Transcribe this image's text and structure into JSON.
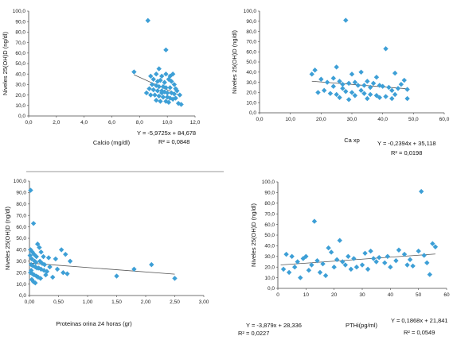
{
  "chart_data": [
    {
      "type": "scatter",
      "xlabel": "Calcio (mg/dl)",
      "ylabel": "Niveles 25(OH)D (ng/dl)",
      "xlim": [
        0,
        12
      ],
      "ylim": [
        0,
        100
      ],
      "xticks": [
        "0,0",
        "2,0",
        "4,0",
        "6,0",
        "8,0",
        "10,0",
        "12,0"
      ],
      "yticks": [
        "0,0",
        "10,0",
        "20,0",
        "30,0",
        "40,0",
        "50,0",
        "60,0",
        "70,0",
        "80,0",
        "90,0",
        "100,0"
      ],
      "color": "#3d9fd6",
      "trend": {
        "slope": -5.9725,
        "intercept": 84.678,
        "x_range": [
          7.6,
          11.0
        ]
      },
      "equation": "Y = -5,9725x + 84,678",
      "r2": "R² = 0,0848",
      "points": [
        [
          8.6,
          91
        ],
        [
          9.9,
          63
        ],
        [
          7.6,
          42
        ],
        [
          9.4,
          45
        ],
        [
          8.8,
          38
        ],
        [
          9.2,
          40
        ],
        [
          9.6,
          38
        ],
        [
          9.9,
          40
        ],
        [
          10.2,
          38
        ],
        [
          10.4,
          40
        ],
        [
          9.0,
          35
        ],
        [
          9.3,
          33
        ],
        [
          9.5,
          34
        ],
        [
          9.8,
          32
        ],
        [
          10.1,
          35
        ],
        [
          10.3,
          33
        ],
        [
          10.5,
          30
        ],
        [
          8.9,
          30
        ],
        [
          9.2,
          29
        ],
        [
          9.4,
          28
        ],
        [
          9.7,
          28
        ],
        [
          9.9,
          27
        ],
        [
          10.2,
          27
        ],
        [
          10.6,
          26
        ],
        [
          8.7,
          26
        ],
        [
          9.0,
          25
        ],
        [
          9.3,
          24
        ],
        [
          9.6,
          24
        ],
        [
          9.8,
          23
        ],
        [
          10.0,
          22
        ],
        [
          10.3,
          22
        ],
        [
          10.5,
          21
        ],
        [
          10.7,
          24
        ],
        [
          8.5,
          22
        ],
        [
          8.8,
          20
        ],
        [
          9.1,
          20
        ],
        [
          9.4,
          19
        ],
        [
          9.7,
          18
        ],
        [
          10.0,
          18
        ],
        [
          10.2,
          17
        ],
        [
          10.4,
          16
        ],
        [
          10.6,
          17
        ],
        [
          9.2,
          15
        ],
        [
          9.5,
          14
        ],
        [
          9.9,
          14
        ],
        [
          10.1,
          13
        ],
        [
          10.8,
          12
        ],
        [
          11.0,
          11
        ],
        [
          9.6,
          22
        ],
        [
          10.9,
          20
        ]
      ]
    },
    {
      "type": "scatter",
      "xlabel": "Ca xp",
      "ylabel": "Niveles 25(OH)D (ng/dl)",
      "xlim": [
        0,
        60
      ],
      "ylim": [
        0,
        100
      ],
      "xticks": [
        "0,0",
        "10,0",
        "20,0",
        "30,0",
        "40,0",
        "50,0",
        "60,0"
      ],
      "yticks": [
        "0,0",
        "10,0",
        "20,0",
        "30,0",
        "40,0",
        "50,0",
        "60,0",
        "70,0",
        "80,0",
        "90,0",
        "100,0"
      ],
      "color": "#3d9fd6",
      "trend": {
        "slope": -0.2394,
        "intercept": 35.118,
        "x_range": [
          17,
          48
        ]
      },
      "equation": "Y = -0,2394x + 35,118",
      "r2": "R² = 0,0198",
      "points": [
        [
          28,
          91
        ],
        [
          41,
          63
        ],
        [
          18,
          42
        ],
        [
          17,
          38
        ],
        [
          25,
          45
        ],
        [
          30,
          38
        ],
        [
          33,
          40
        ],
        [
          38,
          35
        ],
        [
          44,
          39
        ],
        [
          47,
          32
        ],
        [
          20,
          33
        ],
        [
          22,
          30
        ],
        [
          24,
          34
        ],
        [
          26,
          31
        ],
        [
          27,
          28
        ],
        [
          29,
          29
        ],
        [
          31,
          30
        ],
        [
          32,
          27
        ],
        [
          34,
          27
        ],
        [
          35,
          31
        ],
        [
          36,
          25
        ],
        [
          37,
          29
        ],
        [
          39,
          27
        ],
        [
          40,
          26
        ],
        [
          42,
          25
        ],
        [
          43,
          22
        ],
        [
          45,
          24
        ],
        [
          46,
          28
        ],
        [
          48,
          23
        ],
        [
          19,
          20
        ],
        [
          21,
          22
        ],
        [
          23,
          19
        ],
        [
          25,
          18
        ],
        [
          27,
          24
        ],
        [
          28,
          21
        ],
        [
          30,
          20
        ],
        [
          31,
          17
        ],
        [
          33,
          22
        ],
        [
          34,
          19
        ],
        [
          36,
          18
        ],
        [
          38,
          17
        ],
        [
          39,
          15
        ],
        [
          41,
          16
        ],
        [
          43,
          14
        ],
        [
          44,
          18
        ],
        [
          24,
          26
        ],
        [
          26,
          15
        ],
        [
          29,
          13
        ],
        [
          35,
          14
        ],
        [
          48,
          14
        ]
      ]
    },
    {
      "type": "scatter",
      "xlabel": "Proteinas orina 24 horas (gr)",
      "ylabel": "Niveles 25(OH)D (ng/dl)",
      "xlim": [
        0,
        3
      ],
      "ylim": [
        0,
        100
      ],
      "xticks": [
        "0,00",
        "0,50",
        "1,00",
        "1,50",
        "2,00",
        "2,50",
        "3,00"
      ],
      "yticks": [
        "0,0",
        "10,0",
        "20,0",
        "30,0",
        "40,0",
        "50,0",
        "60,0",
        "70,0",
        "80,0",
        "90,0",
        "100,0"
      ],
      "color": "#3d9fd6",
      "trend": {
        "slope": -3.879,
        "intercept": 28.336,
        "x_range": [
          0,
          2.5
        ]
      },
      "equation": "Y = -3,879x + 28,336",
      "r2": "R² = 0,0227",
      "points": [
        [
          0.02,
          92
        ],
        [
          0.07,
          63
        ],
        [
          0.14,
          45
        ],
        [
          0.17,
          42
        ],
        [
          0.02,
          40
        ],
        [
          0.05,
          38
        ],
        [
          0.08,
          36
        ],
        [
          0.12,
          34
        ],
        [
          0.04,
          32
        ],
        [
          0.09,
          30
        ],
        [
          0.11,
          29
        ],
        [
          0.18,
          30
        ],
        [
          0.22,
          28
        ],
        [
          0.03,
          27
        ],
        [
          0.06,
          26
        ],
        [
          0.1,
          25
        ],
        [
          0.13,
          24
        ],
        [
          0.16,
          24
        ],
        [
          0.2,
          23
        ],
        [
          0.25,
          22
        ],
        [
          0.3,
          21
        ],
        [
          0.02,
          20
        ],
        [
          0.05,
          19
        ],
        [
          0.08,
          18
        ],
        [
          0.12,
          17
        ],
        [
          0.15,
          16
        ],
        [
          0.19,
          15
        ],
        [
          0.04,
          14
        ],
        [
          0.07,
          12
        ],
        [
          0.1,
          11
        ],
        [
          0.03,
          22
        ],
        [
          0.24,
          34
        ],
        [
          0.33,
          33
        ],
        [
          0.45,
          32
        ],
        [
          0.55,
          40
        ],
        [
          0.62,
          36
        ],
        [
          0.7,
          30
        ],
        [
          0.35,
          25
        ],
        [
          0.48,
          23
        ],
        [
          0.58,
          20
        ],
        [
          0.28,
          18
        ],
        [
          0.4,
          16
        ],
        [
          0.65,
          19
        ],
        [
          1.5,
          17
        ],
        [
          1.8,
          23
        ],
        [
          2.1,
          27
        ],
        [
          2.5,
          15
        ],
        [
          0.2,
          38
        ],
        [
          0.26,
          27
        ],
        [
          0.01,
          35
        ]
      ]
    },
    {
      "type": "scatter",
      "xlabel": "PTHi(pg/ml)",
      "ylabel": "Niveles 25(OH)D (ng/dl)",
      "xlim": [
        0,
        60
      ],
      "ylim": [
        0,
        100
      ],
      "xticks": [
        "0",
        "10",
        "20",
        "30",
        "40",
        "50",
        "60"
      ],
      "yticks": [
        "0,0",
        "10,0",
        "20,0",
        "30,0",
        "40,0",
        "50,0",
        "60,0",
        "70,0",
        "80,0",
        "90,0",
        "100,0"
      ],
      "color": "#3d9fd6",
      "trend": {
        "slope": 0.1868,
        "intercept": 21.841,
        "x_range": [
          1,
          56
        ]
      },
      "equation": "Y = 0,1868x + 21,841",
      "r2": "R² = 0,0549",
      "points": [
        [
          51,
          91
        ],
        [
          13,
          63
        ],
        [
          22,
          45
        ],
        [
          55,
          42
        ],
        [
          56,
          39
        ],
        [
          18,
          38
        ],
        [
          3,
          32
        ],
        [
          5,
          30
        ],
        [
          7,
          25
        ],
        [
          9,
          28
        ],
        [
          10,
          30
        ],
        [
          12,
          22
        ],
        [
          14,
          26
        ],
        [
          16,
          23
        ],
        [
          19,
          34
        ],
        [
          20,
          20
        ],
        [
          21,
          27
        ],
        [
          23,
          25
        ],
        [
          24,
          22
        ],
        [
          25,
          30
        ],
        [
          27,
          28
        ],
        [
          28,
          20
        ],
        [
          30,
          22
        ],
        [
          31,
          33
        ],
        [
          32,
          18
        ],
        [
          33,
          35
        ],
        [
          35,
          25
        ],
        [
          36,
          29
        ],
        [
          38,
          24
        ],
        [
          39,
          30
        ],
        [
          40,
          20
        ],
        [
          42,
          26
        ],
        [
          43,
          36
        ],
        [
          45,
          32
        ],
        [
          46,
          22
        ],
        [
          47,
          27
        ],
        [
          48,
          21
        ],
        [
          50,
          35
        ],
        [
          52,
          31
        ],
        [
          53,
          24
        ],
        [
          54,
          13
        ],
        [
          2,
          18
        ],
        [
          4,
          15
        ],
        [
          6,
          20
        ],
        [
          8,
          10
        ],
        [
          11,
          17
        ],
        [
          15,
          15
        ],
        [
          17,
          12
        ],
        [
          26,
          18
        ],
        [
          34,
          28
        ]
      ]
    }
  ]
}
